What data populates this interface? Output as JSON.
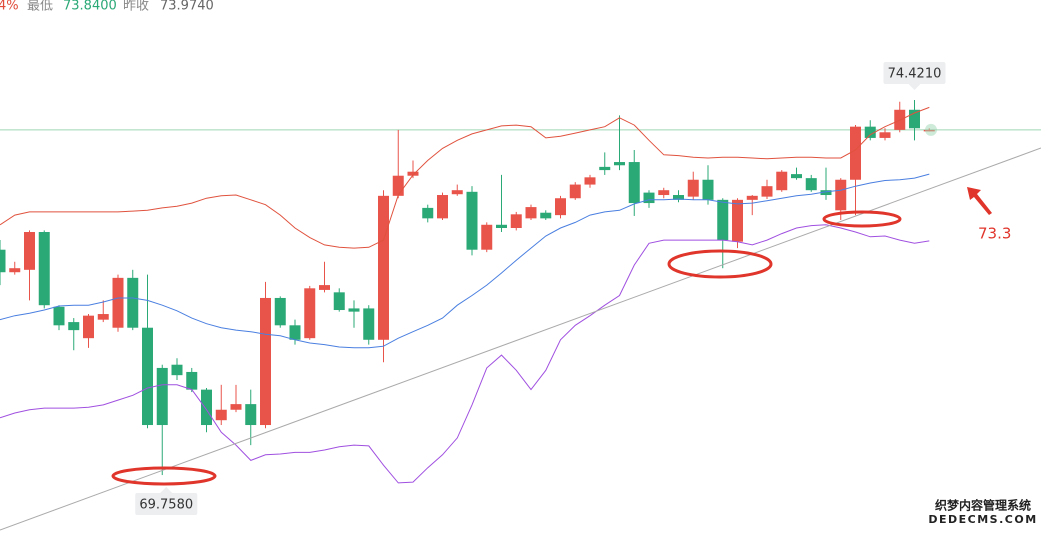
{
  "header": {
    "change": "4%",
    "low_label": "最低",
    "low_value": "73.8400",
    "prev_close_label": "昨收",
    "prev_close_value": "73.9740"
  },
  "chart_data": {
    "type": "candlestick",
    "ylim": [
      69.025,
      75.665
    ],
    "up_color": "#e8534a",
    "down_color": "#2aa876",
    "open": [
      72.56,
      72.28,
      72.31,
      72.78,
      71.85,
      71.66,
      71.46,
      71.69,
      71.59,
      72.21,
      71.59,
      71.09,
      71.13,
      71.04,
      70.82,
      70.44,
      70.57,
      70.64,
      70.38,
      71.96,
      71.62,
      71.46,
      72.06,
      72.03,
      71.83,
      71.83,
      71.44,
      73.23,
      73.48,
      73.08,
      72.95,
      73.25,
      73.28,
      72.56,
      72.87,
      72.83,
      72.95,
      73.02,
      72.99,
      73.2,
      73.37,
      73.59,
      73.65,
      73.65,
      73.27,
      73.24,
      73.24,
      73.22,
      73.43,
      73.18,
      72.66,
      73.18,
      73.22,
      73.3,
      73.5,
      73.45,
      73.3,
      73.05,
      73.43,
      74.09,
      73.95,
      74.05,
      74.3,
      74.05
    ],
    "high": [
      72.68,
      72.41,
      72.8,
      72.8,
      71.87,
      71.71,
      71.76,
      71.93,
      72.25,
      72.31,
      72.25,
      71.13,
      71.21,
      71.09,
      70.84,
      70.88,
      70.88,
      70.82,
      72.16,
      71.98,
      71.69,
      72.11,
      72.41,
      72.08,
      71.93,
      71.87,
      73.3,
      74.05,
      73.67,
      73.12,
      73.27,
      73.37,
      73.35,
      72.9,
      73.49,
      73.03,
      73.12,
      73.05,
      73.23,
      73.4,
      73.49,
      73.77,
      74.23,
      73.8,
      73.3,
      73.33,
      73.3,
      73.53,
      73.61,
      73.2,
      73.2,
      73.24,
      73.43,
      73.55,
      73.58,
      73.49,
      73.58,
      73.45,
      74.11,
      74.17,
      74.07,
      74.4,
      74.421,
      74.07
    ],
    "low": [
      72.12,
      72.25,
      71.93,
      71.83,
      71.56,
      71.31,
      71.34,
      71.66,
      71.54,
      71.56,
      70.34,
      69.758,
      70.94,
      70.79,
      70.29,
      70.38,
      70.54,
      70.13,
      70.34,
      71.59,
      71.38,
      71.44,
      72.03,
      71.79,
      71.59,
      71.38,
      71.16,
      73.2,
      73.45,
      72.9,
      72.93,
      73.23,
      72.49,
      72.53,
      72.78,
      72.8,
      72.93,
      72.93,
      72.95,
      73.18,
      73.33,
      73.49,
      73.55,
      72.98,
      73.08,
      73.2,
      73.15,
      73.18,
      73.12,
      72.33,
      72.58,
      72.99,
      73.19,
      73.28,
      73.43,
      73.28,
      73.18,
      72.93,
      72.99,
      73.92,
      73.92,
      74.02,
      73.92,
      74.03
    ],
    "close": [
      72.28,
      72.33,
      72.78,
      71.87,
      71.62,
      71.56,
      71.74,
      71.76,
      72.21,
      71.59,
      70.38,
      70.38,
      71.0,
      70.82,
      70.38,
      70.57,
      70.64,
      70.38,
      71.96,
      71.62,
      71.44,
      72.08,
      72.12,
      71.81,
      71.79,
      71.44,
      73.23,
      73.48,
      73.53,
      72.95,
      73.24,
      73.3,
      72.56,
      72.87,
      72.83,
      73.0,
      73.09,
      72.95,
      73.2,
      73.37,
      73.46,
      73.55,
      73.61,
      73.14,
      73.14,
      73.3,
      73.18,
      73.43,
      73.18,
      72.68,
      73.18,
      73.23,
      73.35,
      73.53,
      73.45,
      73.3,
      73.24,
      73.43,
      74.09,
      73.95,
      74.02,
      74.3,
      74.07,
      74.05
    ],
    "lines": [
      {
        "color": "#e0523e",
        "values": [
          72.87,
          72.99,
          73.03,
          73.03,
          73.03,
          73.03,
          73.03,
          73.03,
          73.03,
          73.04,
          73.05,
          73.08,
          73.1,
          73.14,
          73.2,
          73.23,
          73.24,
          73.18,
          73.12,
          72.99,
          72.83,
          72.71,
          72.62,
          72.59,
          72.58,
          72.59,
          72.68,
          73.24,
          73.49,
          73.67,
          73.82,
          73.92,
          74.0,
          74.05,
          74.1,
          74.11,
          74.09,
          73.95,
          73.97,
          74.01,
          74.05,
          74.09,
          74.2,
          74.11,
          73.92,
          73.74,
          73.73,
          73.71,
          73.7,
          73.71,
          73.71,
          73.7,
          73.69,
          73.7,
          73.71,
          73.71,
          73.7,
          73.7,
          73.8,
          73.99,
          74.09,
          74.17,
          74.26,
          74.33
        ]
      },
      {
        "color": "#4a7fe0",
        "values": [
          71.69,
          71.74,
          71.77,
          71.81,
          71.86,
          71.87,
          71.87,
          71.91,
          71.96,
          71.96,
          71.93,
          71.87,
          71.8,
          71.71,
          71.64,
          71.59,
          71.56,
          71.54,
          71.51,
          71.49,
          71.44,
          71.4,
          71.38,
          71.35,
          71.34,
          71.34,
          71.36,
          71.46,
          71.54,
          71.62,
          71.71,
          71.87,
          71.99,
          72.12,
          72.27,
          72.43,
          72.58,
          72.73,
          72.83,
          72.9,
          72.99,
          73.03,
          73.05,
          73.13,
          73.18,
          73.18,
          73.19,
          73.18,
          73.18,
          73.15,
          73.13,
          73.14,
          73.17,
          73.2,
          73.23,
          73.25,
          73.28,
          73.3,
          73.35,
          73.39,
          73.42,
          73.43,
          73.45,
          73.5
        ]
      },
      {
        "color": "#a050e0",
        "values": [
          70.47,
          70.53,
          70.57,
          70.59,
          70.59,
          70.59,
          70.6,
          70.63,
          70.69,
          70.75,
          70.84,
          70.88,
          70.88,
          70.82,
          70.57,
          70.29,
          70.13,
          69.94,
          70.01,
          70.02,
          70.04,
          70.04,
          70.07,
          70.11,
          70.13,
          70.12,
          69.88,
          69.66,
          69.67,
          69.85,
          70.01,
          70.22,
          70.63,
          71.09,
          71.25,
          71.06,
          70.82,
          71.06,
          71.44,
          71.62,
          71.74,
          71.87,
          71.99,
          72.37,
          72.64,
          72.68,
          72.68,
          72.68,
          72.68,
          72.68,
          72.66,
          72.62,
          72.68,
          72.76,
          72.83,
          72.86,
          72.87,
          72.83,
          72.78,
          72.72,
          72.73,
          72.68,
          72.64,
          72.67
        ]
      }
    ],
    "last_price": {
      "value": 74.05,
      "color": "#9dd6b4"
    },
    "value_labels": {
      "high": {
        "62": "74.4210"
      },
      "low": {
        "11": "69.7580"
      }
    },
    "annotation": "73.3"
  },
  "watermark": {
    "line1": "织梦内容管理系统",
    "line2": "DEDECMS.COM"
  }
}
